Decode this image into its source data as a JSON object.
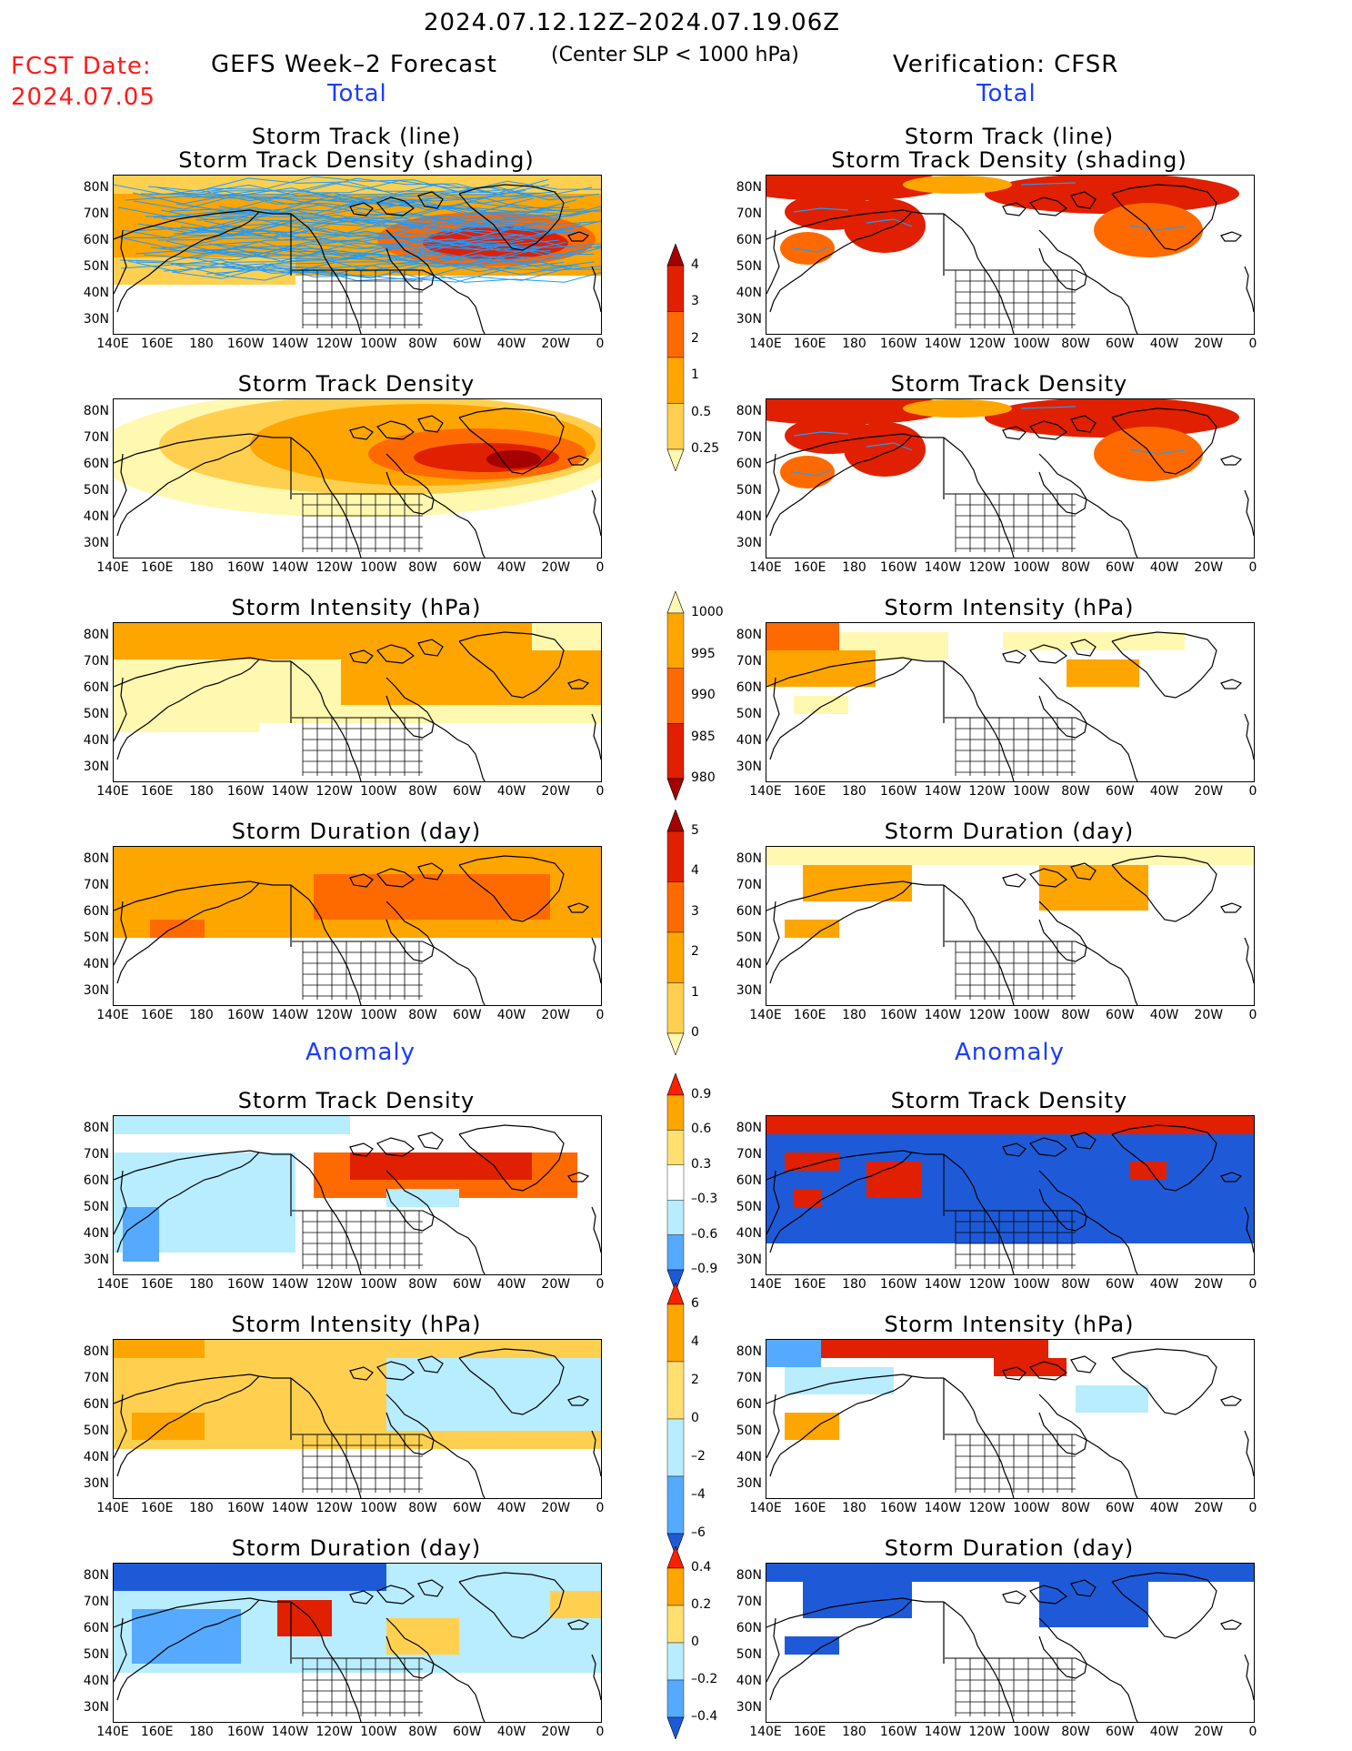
{
  "header": {
    "period": "2024.07.12.12Z–2024.07.19.06Z",
    "criterion": "(Center SLP < 1000 hPa)",
    "fcst_label": "FCST Date:",
    "fcst_date": "2024.07.05",
    "left_title": "GEFS Week–2 Forecast",
    "right_title": "Verification: CFSR",
    "left_total": "Total",
    "right_total": "Total",
    "left_anomaly": "Anomaly",
    "right_anomaly": "Anomaly"
  },
  "panels": {
    "track_line_title1": "Storm Track (line)",
    "track_line_title2": "Storm Track Density (shading)",
    "density_title": "Storm Track Density",
    "intensity_title": "Storm Intensity (hPa)",
    "duration_title": "Storm Duration (day)"
  },
  "axes": {
    "lat_labels": [
      "80N",
      "70N",
      "60N",
      "50N",
      "40N",
      "30N"
    ],
    "lon_labels": [
      "140E",
      "160E",
      "180",
      "160W",
      "140W",
      "120W",
      "100W",
      "80W",
      "60W",
      "40W",
      "20W",
      "0"
    ]
  },
  "colorbars": {
    "density": {
      "labels": [
        "4",
        "3",
        "2",
        "1",
        "0.5",
        "0.25"
      ],
      "colors": [
        "#a50000",
        "#e02000",
        "#ff6a00",
        "#ffa500",
        "#ffd050",
        "#fff8b0"
      ]
    },
    "intensity": {
      "labels": [
        "1000",
        "995",
        "990",
        "985",
        "980"
      ],
      "colors": [
        "#fff8b0",
        "#ffa500",
        "#ff6a00",
        "#e02000",
        "#a50000"
      ]
    },
    "duration": {
      "labels": [
        "5",
        "4",
        "3",
        "2",
        "1",
        "0"
      ],
      "colors": [
        "#a50000",
        "#e02000",
        "#ff6a00",
        "#ffa500",
        "#ffd050",
        "#fff8b0"
      ]
    },
    "anom_density": {
      "labels": [
        "0.9",
        "0.6",
        "0.3",
        "–0.3",
        "–0.6",
        "–0.9"
      ],
      "colors": [
        "#ff2000",
        "#ffa500",
        "#ffe070",
        "#ffffff",
        "#b8ecff",
        "#55aaff",
        "#1e5ad8"
      ]
    },
    "anom_intensity": {
      "labels": [
        "6",
        "4",
        "2",
        "0",
        "–2",
        "–4",
        "–6"
      ],
      "colors": [
        "#ff2000",
        "#ffa500",
        "#ffe070",
        "#b8ecff",
        "#55aaff",
        "#1e5ad8"
      ]
    },
    "anom_duration": {
      "labels": [
        "0.4",
        "0.2",
        "0",
        "–0.2",
        "–0.4"
      ],
      "colors": [
        "#ff2000",
        "#ffa500",
        "#ffe070",
        "#b8ecff",
        "#55aaff",
        "#1e5ad8"
      ]
    }
  },
  "palette": {
    "light_yellow": "#fff8b0",
    "yellow": "#ffd050",
    "orange": "#ffa500",
    "dark_orange": "#ff6a00",
    "red": "#e02000",
    "dark_red": "#a50000",
    "light_blue": "#b8ecff",
    "blue": "#55aaff",
    "dark_blue": "#1e5ad8",
    "track_line": "#1e9bff"
  }
}
